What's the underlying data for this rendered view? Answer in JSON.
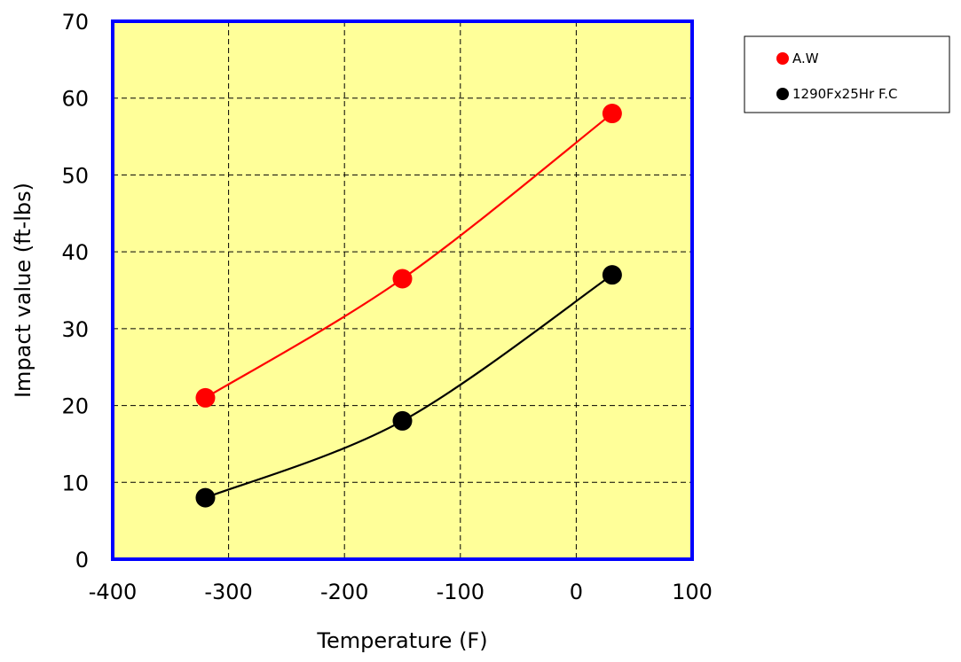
{
  "chart_data": {
    "type": "scatter",
    "title": "",
    "xlabel": "Temperature (F)",
    "ylabel": "Impact value (ft-lbs)",
    "xlim": [
      -400,
      100
    ],
    "ylim": [
      0,
      70
    ],
    "xticks": [
      -400,
      -300,
      -200,
      -100,
      0,
      100
    ],
    "yticks": [
      0,
      10,
      20,
      30,
      40,
      50,
      60,
      70
    ],
    "grid": true,
    "legend_position": "right",
    "plot_background": "#ffff99",
    "frame_color": "#0000ff",
    "series": [
      {
        "name": "A.W",
        "color": "#ff0000",
        "points": [
          {
            "x": -320,
            "y": 21
          },
          {
            "x": -150,
            "y": 36.5
          },
          {
            "x": 31,
            "y": 58
          }
        ]
      },
      {
        "name": "1290Fx25Hr F.C",
        "color": "#000000",
        "points": [
          {
            "x": -320,
            "y": 8
          },
          {
            "x": -150,
            "y": 18
          },
          {
            "x": 31,
            "y": 37
          }
        ]
      }
    ]
  }
}
